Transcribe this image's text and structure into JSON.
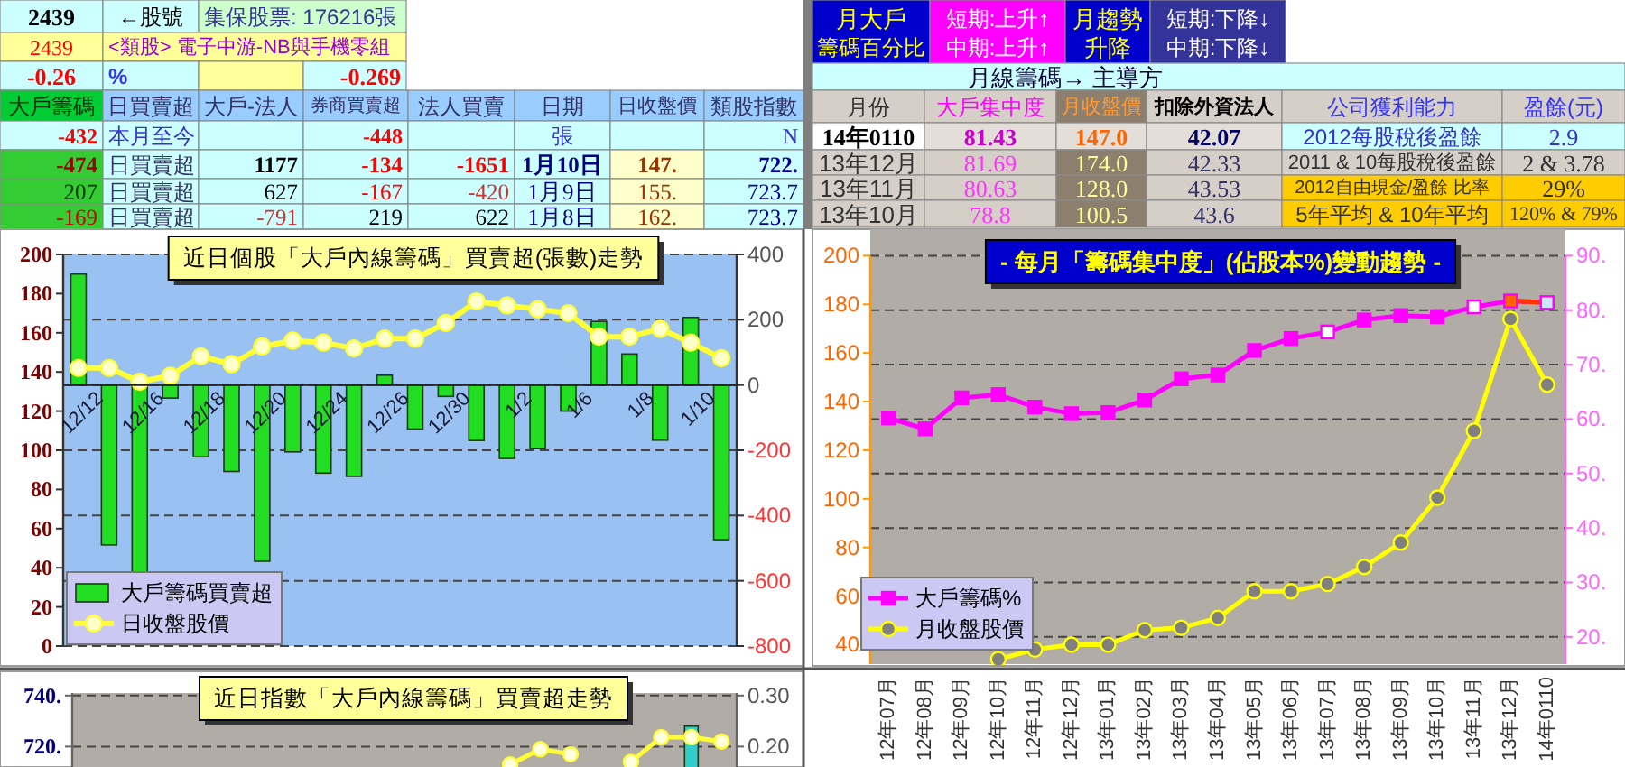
{
  "chart_data": [
    {
      "type": "other",
      "annotations": [
        "2439",
        "←股號",
        "集保股票: 176216張",
        "2439",
        "<類股> 電子中游-NB與手機零組",
        "-0.26",
        "%",
        "-0.269",
        "大戶籌碼",
        "日買賣超",
        "大戶-法人",
        "券商買賣超",
        "法人買賣",
        "日期",
        "日收盤價",
        "類股指數",
        "-432",
        "本月至今",
        "-448",
        "張",
        "N",
        "-474",
        "日買賣超",
        "1177",
        "-134",
        "-1651",
        "1月10日",
        "147.",
        "722.",
        "207",
        "日買賣超",
        "627",
        "-167",
        "-420",
        "1月9日",
        "155.",
        "723.7",
        "-169",
        "日買賣超",
        "-791",
        "219",
        "622",
        "1月8日",
        "162.",
        "723.7"
      ]
    },
    {
      "type": "other",
      "annotations": [
        "月大戶",
        "籌碼百分比",
        "短期:上升↑",
        "中期:上升↑",
        "月趨勢",
        "升降",
        "短期:下降↓",
        "中期:下降↓",
        "月線籌碼→ 主導方",
        "月份",
        "大戶集中度",
        "月收盤價",
        "扣除外資法人",
        "公司獲利能力",
        "盈餘(元)",
        "14年0110",
        "81.43",
        "147.0",
        "42.07",
        "2012每股稅後盈餘",
        "2.9",
        "13年12月",
        "81.69",
        "174.0",
        "42.33",
        "2011 & 10每股稅後盈餘",
        "2 & 3.78",
        "13年11月",
        "80.63",
        "128.0",
        "43.53",
        "2012自由現金/盈餘 比率",
        "29%",
        "13年10月",
        "78.8",
        "100.5",
        "43.6",
        "5年平均 & 10年平均",
        "120% & 79%"
      ]
    },
    {
      "type": "bar",
      "title": "近日個股「大戶內線籌碼」買賣超(張數)走勢",
      "categories": [
        null,
        "12/12",
        null,
        "12/16",
        null,
        "12/18",
        null,
        "12/20",
        null,
        "12/24",
        null,
        "12/26",
        null,
        "12/30",
        null,
        "1/2",
        null,
        "1/6",
        null,
        "1/8",
        null,
        "1/10"
      ],
      "series": [
        {
          "name": "大戶籌碼買賣超",
          "type": "bar",
          "axis": "y2",
          "color": "#22dd22",
          "values": [
            340,
            -490,
            -575,
            -40,
            -220,
            -265,
            -540,
            -205,
            -270,
            -280,
            30,
            -135,
            -35,
            -170,
            -225,
            -195,
            -80,
            195,
            95,
            -169,
            207,
            -474
          ]
        },
        {
          "name": "日收盤股價",
          "type": "line",
          "marker": "circle",
          "color": "#ffff33",
          "colors": [
            "#ffffcc",
            "#ffffcc",
            "#ffffcc",
            "#ffffcc",
            "#ffffcc",
            "#ffffcc",
            "#ffffcc",
            "#ffffcc",
            "#ffffcc",
            "#ffffcc",
            "#ffffcc",
            "#ffffcc",
            "#ffffcc",
            "#ffffcc",
            "#ffffcc",
            "#ffffcc",
            "#ffffcc",
            "#ffffcc",
            "#ffffcc",
            "#ffffcc",
            "#ffffcc",
            "#ffffcc"
          ],
          "values": [
            142,
            142,
            135,
            138,
            148,
            144,
            153,
            156,
            155,
            152,
            157,
            157,
            165,
            176,
            174,
            172,
            170,
            158,
            158,
            162,
            155,
            147
          ]
        }
      ],
      "ylim": [
        0,
        200
      ],
      "yticks": [
        0,
        20,
        40,
        60,
        80,
        100,
        120,
        140,
        160,
        180,
        200
      ],
      "y2lim": [
        -800,
        400
      ],
      "y2ticks": [
        -800,
        -600,
        -400,
        -200,
        0,
        200,
        400
      ],
      "grid": "y",
      "legend": "bottom left"
    },
    {
      "type": "line",
      "title": "- 每月「籌碼集中度」(佔股本%)變動趨勢 -",
      "categories": [
        "12年07月",
        "12年08月",
        "12年09月",
        "12年10月",
        "12年11月",
        "12年12月",
        "13年01月",
        "13年02月",
        "13年03月",
        "13年04月",
        "13年05月",
        "13年06月",
        "13年07月",
        "13年08月",
        "13年09月",
        "13年10月",
        "13年11月",
        "13年12月",
        "14年0110"
      ],
      "series": [
        {
          "name": "大戶籌碼%",
          "type": "line",
          "axis": "y2",
          "marker": "square",
          "color": "#ff00ff",
          "colors": [
            "#ff00ff",
            "#ff00ff",
            "#ff00ff",
            "#ff00ff",
            "#ff00ff",
            "#ff00ff",
            "#ff00ff",
            "#ff00ff",
            "#ff00ff",
            "#ff00ff",
            "#ff00ff",
            "#ff00ff",
            "#ffffff",
            "#ff00ff",
            "#ff00ff",
            "#ff00ff",
            "#ffffff",
            "#ff6600",
            "#cce6ff"
          ],
          "values": [
            60.2,
            58.2,
            63.9,
            64.5,
            62.2,
            61.0,
            61.2,
            63.5,
            67.4,
            68.1,
            72.6,
            74.8,
            76.0,
            78.2,
            79.0,
            78.8,
            80.6,
            81.7,
            81.4
          ]
        },
        {
          "name": "月收盤股價",
          "type": "line",
          "marker": "circle",
          "color": "#ffff00",
          "colors": [
            null,
            null,
            null,
            "#808080",
            "#808080",
            "#808080",
            "#808080",
            "#808080",
            "#808080",
            "#808080",
            "#808080",
            "#808080",
            "#808080",
            "#808080",
            "#808080",
            "#808080",
            "#808080",
            "#808080",
            "#808080"
          ],
          "values": [
            null,
            null,
            null,
            34,
            38,
            40,
            40,
            46,
            47,
            51,
            62,
            62,
            65,
            72,
            82,
            100.5,
            128.0,
            174.0,
            147.0
          ]
        },
        {
          "type": "line",
          "axis": "y2",
          "marker": "none",
          "color": "#ff3300",
          "values": [
            null,
            null,
            null,
            null,
            null,
            null,
            null,
            null,
            null,
            null,
            null,
            null,
            null,
            null,
            null,
            null,
            null,
            81.7,
            81.4
          ]
        }
      ],
      "ylim": [
        32,
        200
      ],
      "yticks": [
        40,
        60,
        80,
        100,
        120,
        140,
        160,
        180,
        200
      ],
      "y2lim": [
        15,
        90
      ],
      "y2ticks": [
        {
          "value": 20,
          "label": "20."
        },
        {
          "value": 30,
          "label": "30."
        },
        {
          "value": 40,
          "label": "40."
        },
        {
          "value": 50,
          "label": "50."
        },
        {
          "value": 60,
          "label": "60."
        },
        {
          "value": 70,
          "label": "70."
        },
        {
          "value": 80,
          "label": "80."
        },
        {
          "value": 90,
          "label": "90."
        }
      ],
      "grid": "y",
      "legend": "bottom left"
    },
    {
      "type": "line",
      "title": "近日指數「大戶內線籌碼」買賣超走勢",
      "categories": [
        null,
        null,
        null,
        null,
        null,
        null,
        null,
        null,
        null,
        null,
        null,
        null,
        null,
        null,
        null,
        null,
        null,
        null,
        null,
        null,
        null,
        null
      ],
      "series": [
        {
          "type": "bar",
          "axis": "y2",
          "color": "#33cccc",
          "values": [
            null,
            null,
            null,
            null,
            null,
            null,
            null,
            null,
            null,
            null,
            null,
            null,
            null,
            null,
            null,
            null,
            null,
            null,
            null,
            null,
            0.24,
            null
          ]
        },
        {
          "type": "line",
          "marker": "circle",
          "color": "#ffff33",
          "colors": [
            null,
            null,
            null,
            null,
            null,
            null,
            null,
            null,
            null,
            null,
            null,
            null,
            null,
            null,
            "#ffffdd",
            "#ffffdd",
            "#ffffdd",
            null,
            "#ffffdd",
            "#ffffdd",
            "#ffffdd",
            "#ffffdd"
          ],
          "values": [
            null,
            null,
            null,
            null,
            null,
            null,
            null,
            null,
            null,
            null,
            null,
            null,
            null,
            null,
            713,
            719,
            717,
            null,
            714,
            723.7,
            723.7,
            722
          ]
        }
      ],
      "ylim": [
        712,
        741
      ],
      "yticks": [
        {
          "value": 720,
          "label": "720."
        },
        {
          "value": 740,
          "label": "740."
        }
      ],
      "y2lim": [
        0.16,
        0.305
      ],
      "y2ticks": [
        {
          "value": 0.2,
          "label": "0.20"
        },
        {
          "value": 0.3,
          "label": "0.30"
        }
      ],
      "grid": "y"
    }
  ]
}
